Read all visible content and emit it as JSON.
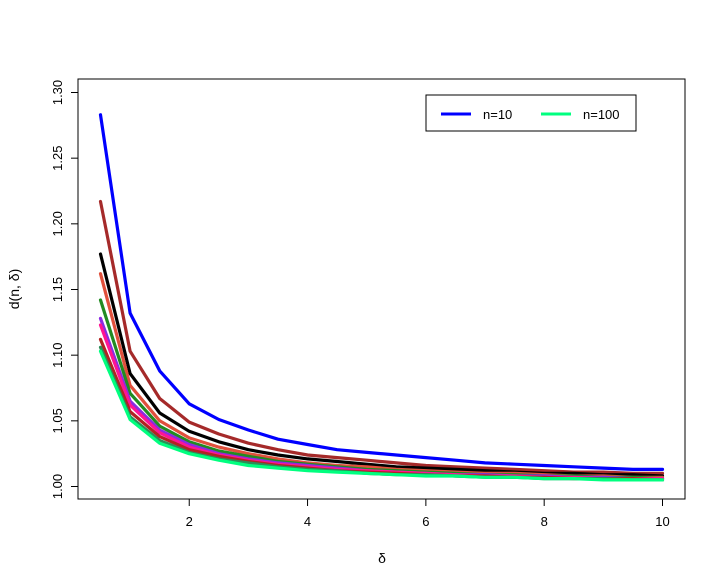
{
  "chart_data": {
    "type": "line",
    "title": "",
    "xlabel": "δ",
    "ylabel": "d(n, δ)",
    "xlim": [
      0.5,
      10
    ],
    "ylim": [
      1.0,
      1.3
    ],
    "x_ticks": [
      2,
      4,
      6,
      8,
      10
    ],
    "y_ticks": [
      1.0,
      1.05,
      1.1,
      1.15,
      1.2,
      1.25,
      1.3
    ],
    "x_tick_labels": [
      "2",
      "4",
      "6",
      "8",
      "10"
    ],
    "y_tick_labels": [
      "1.00",
      "1.05",
      "1.10",
      "1.15",
      "1.20",
      "1.25",
      "1.30"
    ],
    "grid": false,
    "legend_position": "top-right",
    "legend": [
      {
        "label": "n=10",
        "color": "#0000FF"
      },
      {
        "label": "n=100",
        "color": "#00FF7F"
      }
    ],
    "x": [
      0.5,
      1.0,
      1.5,
      2.0,
      2.5,
      3.0,
      3.5,
      4.0,
      4.5,
      5.0,
      5.5,
      6.0,
      6.5,
      7.0,
      7.5,
      8.0,
      8.5,
      9.0,
      9.5,
      10.0
    ],
    "series": [
      {
        "color": "#0000FF",
        "values": [
          1.283,
          1.132,
          1.088,
          1.063,
          1.051,
          1.043,
          1.036,
          1.032,
          1.028,
          1.026,
          1.024,
          1.022,
          1.02,
          1.018,
          1.017,
          1.016,
          1.015,
          1.014,
          1.013,
          1.013
        ]
      },
      {
        "color": "#A52A2A",
        "values": [
          1.217,
          1.103,
          1.067,
          1.049,
          1.04,
          1.033,
          1.028,
          1.024,
          1.022,
          1.02,
          1.018,
          1.016,
          1.015,
          1.014,
          1.013,
          1.012,
          1.011,
          1.011,
          1.01,
          1.01
        ]
      },
      {
        "color": "#000000",
        "values": [
          1.177,
          1.086,
          1.056,
          1.042,
          1.034,
          1.028,
          1.024,
          1.021,
          1.019,
          1.017,
          1.015,
          1.014,
          1.013,
          1.012,
          1.011,
          1.01,
          1.01,
          1.009,
          1.009,
          1.008
        ]
      },
      {
        "color": "#E0503C",
        "values": [
          1.162,
          1.077,
          1.05,
          1.037,
          1.03,
          1.025,
          1.021,
          1.018,
          1.016,
          1.015,
          1.013,
          1.012,
          1.011,
          1.01,
          1.01,
          1.009,
          1.008,
          1.008,
          1.007,
          1.007
        ]
      },
      {
        "color": "#228B22",
        "values": [
          1.142,
          1.071,
          1.046,
          1.034,
          1.027,
          1.023,
          1.019,
          1.017,
          1.015,
          1.013,
          1.012,
          1.011,
          1.01,
          1.009,
          1.009,
          1.008,
          1.008,
          1.007,
          1.007,
          1.006
        ]
      },
      {
        "color": "#8A2BE2",
        "values": [
          1.128,
          1.065,
          1.043,
          1.032,
          1.025,
          1.021,
          1.018,
          1.016,
          1.014,
          1.012,
          1.011,
          1.01,
          1.009,
          1.009,
          1.008,
          1.008,
          1.007,
          1.007,
          1.006,
          1.006
        ]
      },
      {
        "color": "#FF1493",
        "values": [
          1.123,
          1.062,
          1.041,
          1.03,
          1.024,
          1.02,
          1.017,
          1.015,
          1.013,
          1.012,
          1.011,
          1.01,
          1.009,
          1.008,
          1.008,
          1.007,
          1.007,
          1.006,
          1.006,
          1.006
        ]
      },
      {
        "color": "#B22222",
        "values": [
          1.112,
          1.057,
          1.038,
          1.028,
          1.023,
          1.019,
          1.016,
          1.014,
          1.012,
          1.011,
          1.01,
          1.009,
          1.008,
          1.008,
          1.007,
          1.007,
          1.006,
          1.006,
          1.006,
          1.005
        ]
      },
      {
        "color": "#2E8B57",
        "values": [
          1.106,
          1.053,
          1.035,
          1.026,
          1.021,
          1.018,
          1.015,
          1.013,
          1.012,
          1.01,
          1.009,
          1.009,
          1.008,
          1.007,
          1.007,
          1.006,
          1.006,
          1.006,
          1.005,
          1.005
        ]
      },
      {
        "color": "#00FF7F",
        "values": [
          1.103,
          1.051,
          1.033,
          1.025,
          1.02,
          1.016,
          1.014,
          1.012,
          1.011,
          1.01,
          1.009,
          1.008,
          1.008,
          1.007,
          1.007,
          1.006,
          1.006,
          1.005,
          1.005,
          1.005
        ]
      }
    ]
  }
}
